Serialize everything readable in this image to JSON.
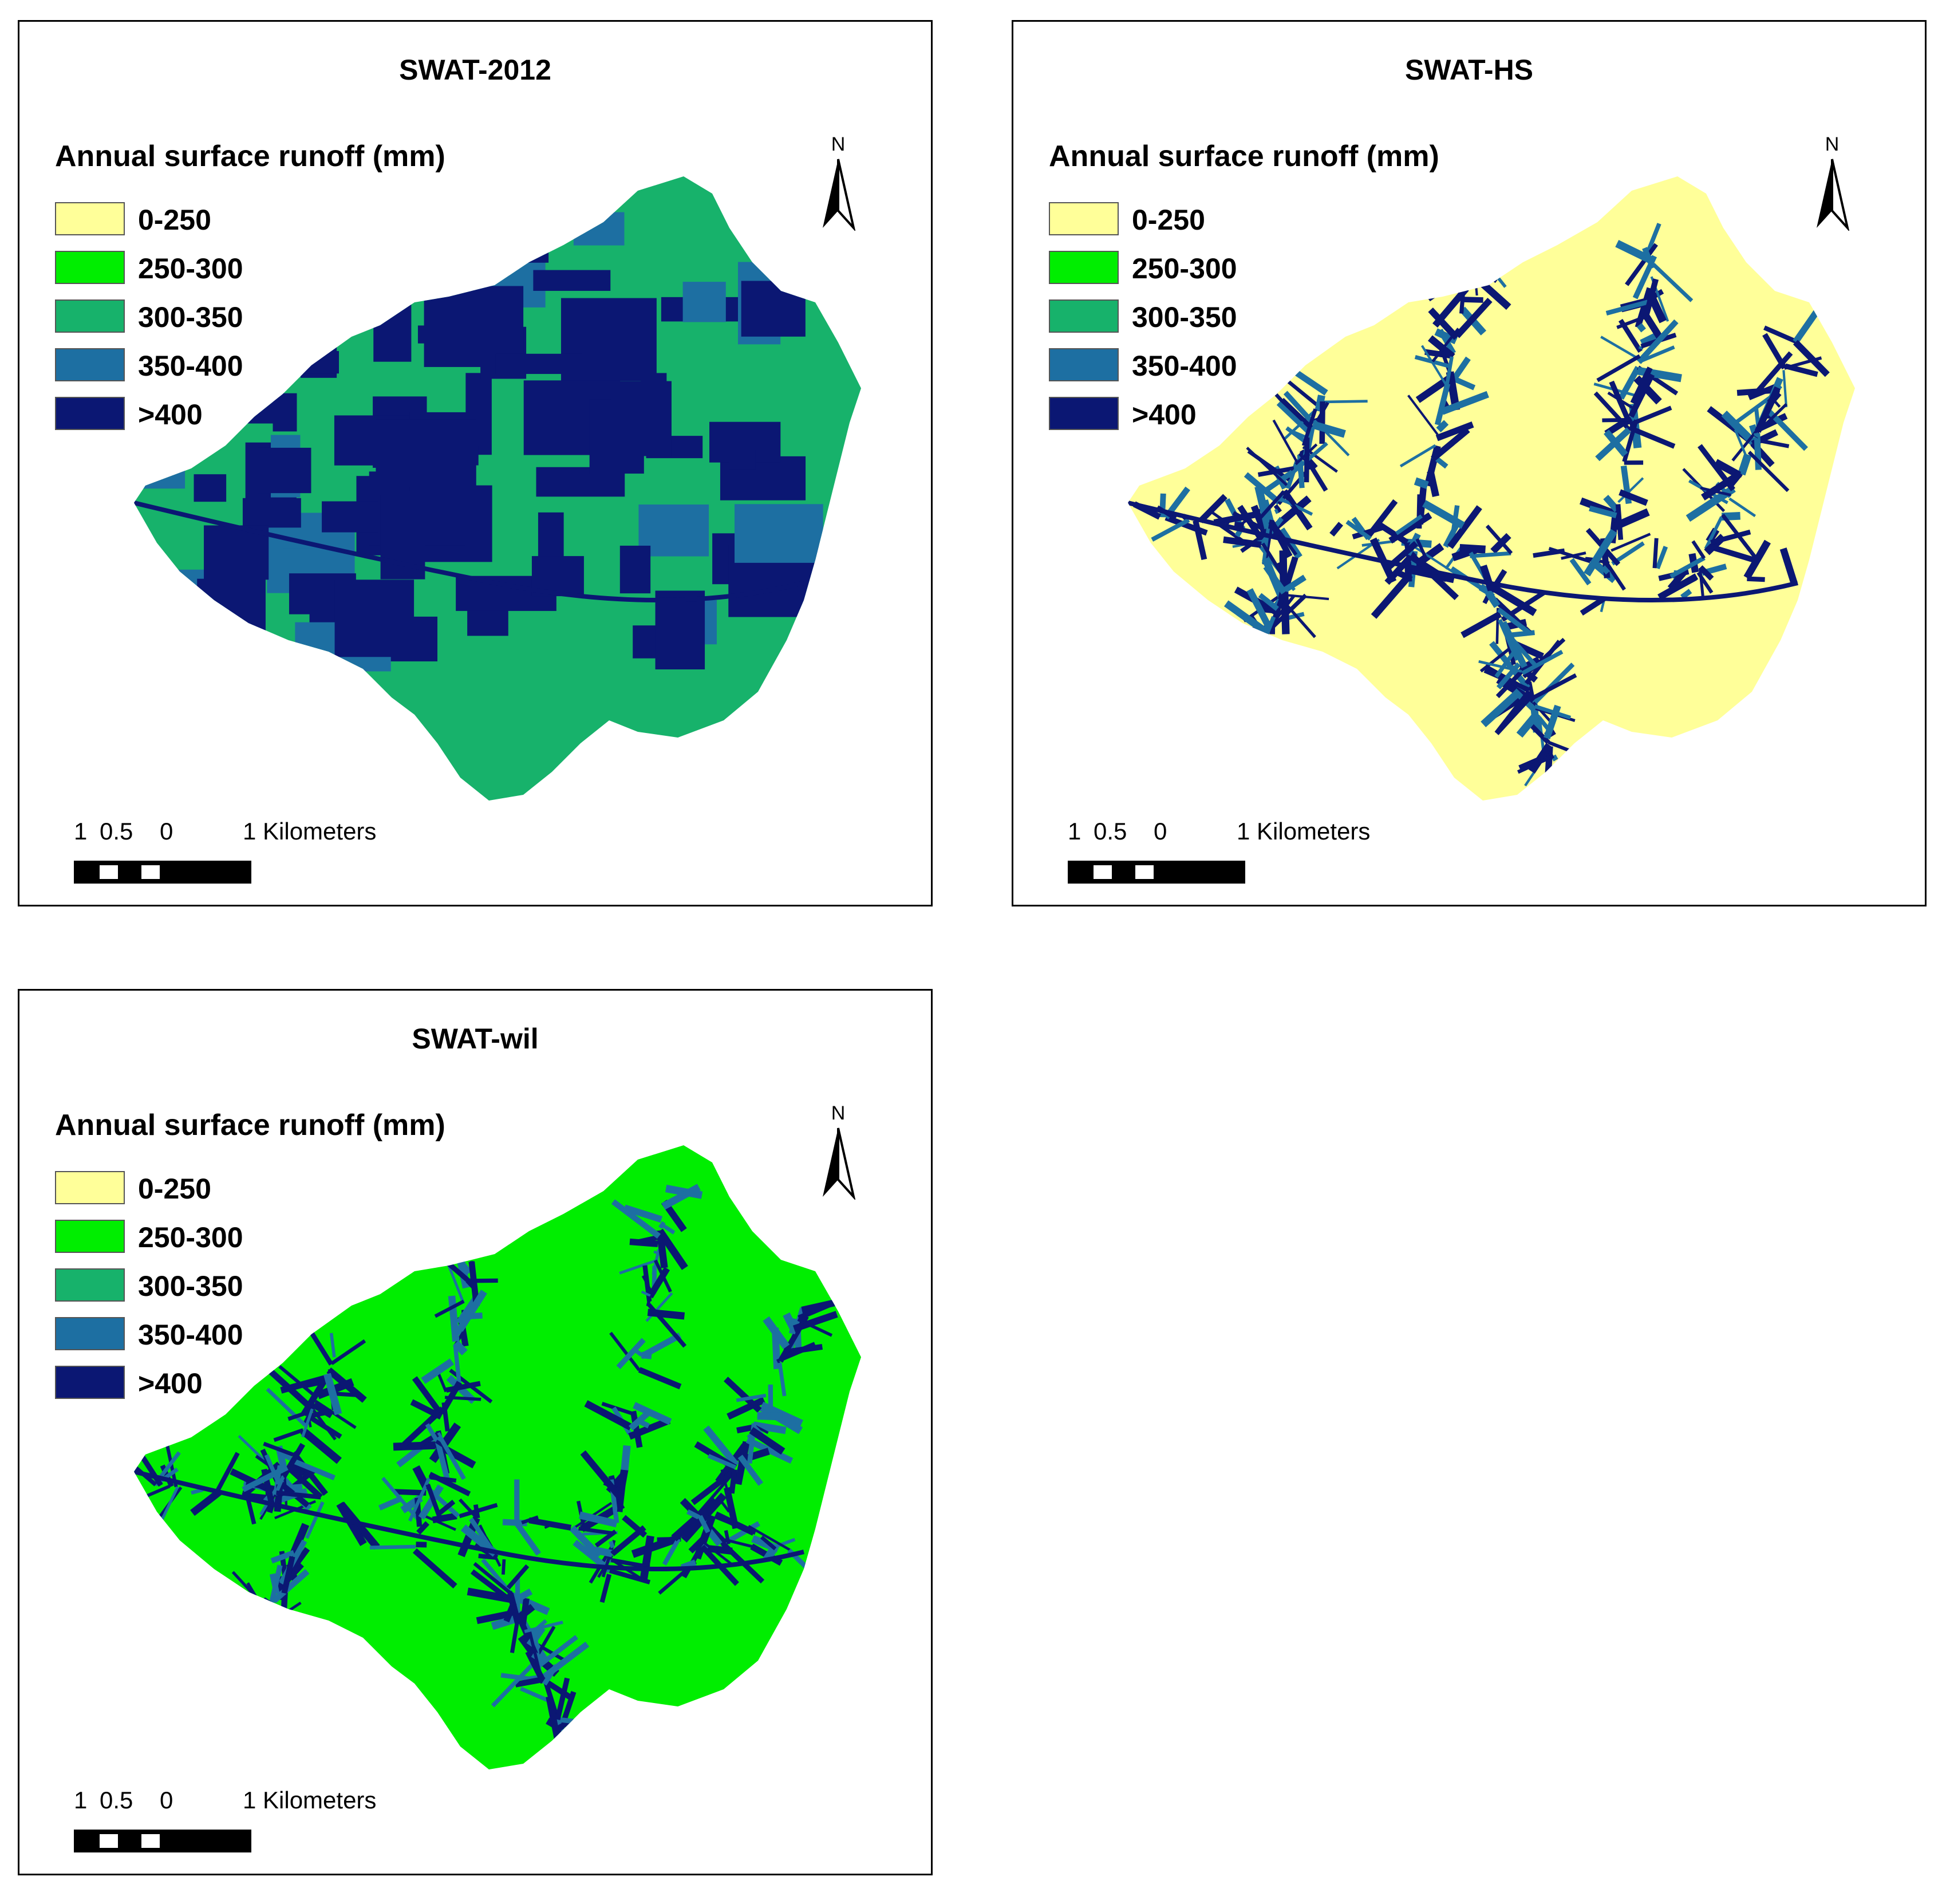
{
  "legend": {
    "title": "Annual surface runoff (mm)",
    "classes": [
      {
        "label": "0-250",
        "color": "#ffff99"
      },
      {
        "label": "250-300",
        "color": "#00ee00"
      },
      {
        "label": "300-350",
        "color": "#17b26b"
      },
      {
        "label": "350-400",
        "color": "#1d6fa2"
      },
      {
        "label": ">400",
        "color": "#0b1773"
      }
    ]
  },
  "north_arrow": {
    "label": "N"
  },
  "scale_bar": {
    "ticks": [
      "1",
      "0.5",
      "0",
      "1 Kilometers"
    ]
  },
  "panels": [
    {
      "title": "SWAT-2012",
      "dominant_class": "300-350",
      "pattern": "patchy >400 blocks"
    },
    {
      "title": "SWAT-HS",
      "dominant_class": "0-250",
      "pattern": "dendritic >400 along channels"
    },
    {
      "title": "SWAT-wil",
      "dominant_class": "250-300",
      "pattern": "dendritic >400 along channels"
    }
  ]
}
